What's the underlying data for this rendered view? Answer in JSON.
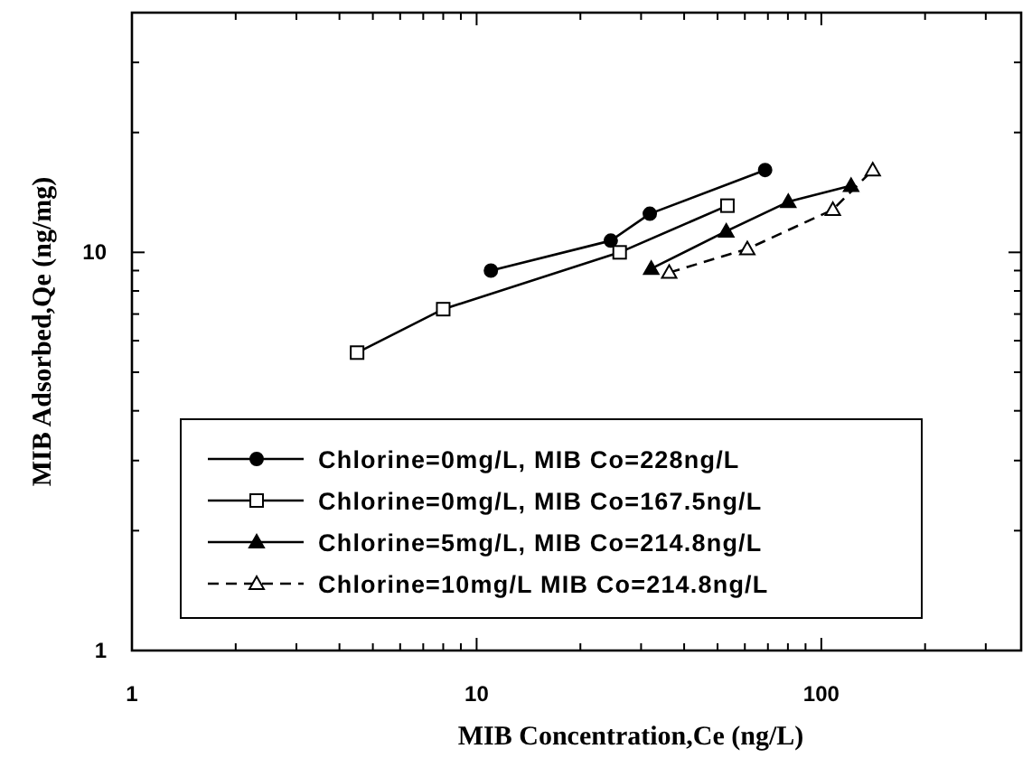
{
  "chart_data": {
    "type": "line",
    "xlabel": "MIB Concentration,Ce (ng/L)",
    "ylabel": "MIB Adsorbed,Qe (ng/mg)",
    "log": "xy",
    "xlim": [
      1,
      380
    ],
    "ylim": [
      1,
      40
    ],
    "xticks": [
      1,
      {
        "value": 2,
        "label": null
      },
      {
        "value": 3,
        "label": null
      },
      {
        "value": 4,
        "label": null
      },
      {
        "value": 5,
        "label": null
      },
      {
        "value": 6,
        "label": null
      },
      {
        "value": 7,
        "label": null
      },
      {
        "value": 8,
        "label": null
      },
      {
        "value": 9,
        "label": null
      },
      10,
      {
        "value": 20,
        "label": null
      },
      {
        "value": 30,
        "label": null
      },
      {
        "value": 40,
        "label": null
      },
      {
        "value": 50,
        "label": null
      },
      {
        "value": 60,
        "label": null
      },
      {
        "value": 70,
        "label": null
      },
      {
        "value": 80,
        "label": null
      },
      {
        "value": 90,
        "label": null
      },
      100,
      {
        "value": 200,
        "label": null
      },
      {
        "value": 300,
        "label": null
      }
    ],
    "yticks": [
      1,
      {
        "value": 2,
        "label": null
      },
      {
        "value": 3,
        "label": null
      },
      {
        "value": 4,
        "label": null
      },
      {
        "value": 5,
        "label": null
      },
      {
        "value": 6,
        "label": null
      },
      {
        "value": 7,
        "label": null
      },
      {
        "value": 8,
        "label": null
      },
      {
        "value": 9,
        "label": null
      },
      10,
      {
        "value": 20,
        "label": null
      },
      {
        "value": 30,
        "label": null
      }
    ],
    "grid": false,
    "legend": "bottom",
    "series": [
      {
        "name": "Chlorine=0mg/L, MIB Co=228ng/L",
        "color": "#000000",
        "marker": "circle",
        "line_style": "solid",
        "x": [
          11,
          24.5,
          31.8,
          68.7
        ],
        "values": [
          9.0,
          10.7,
          12.5,
          16.1
        ]
      },
      {
        "name": "Chlorine=0mg/L, MIB Co=167.5ng/L",
        "color": "#000000",
        "marker": "square",
        "line_style": "solid",
        "x": [
          4.5,
          8.0,
          26,
          53.4
        ],
        "values": [
          5.6,
          7.2,
          10.0,
          13.1
        ]
      },
      {
        "name": "Chlorine=5mg/L, MIB Co=214.8ng/L",
        "color": "#000000",
        "marker": "triangle",
        "line_style": "solid",
        "x": [
          32.1,
          53,
          80.2,
          122
        ],
        "values": [
          9.1,
          11.3,
          13.4,
          14.7
        ]
      },
      {
        "name": "Chlorine=10mg/L MIB Co=214.8ng/L",
        "color": "#000000",
        "marker": "triangle",
        "line_style": "dashed",
        "x": [
          36.2,
          61,
          108,
          141
        ],
        "values": [
          8.9,
          10.2,
          12.8,
          16.1
        ]
      }
    ]
  }
}
